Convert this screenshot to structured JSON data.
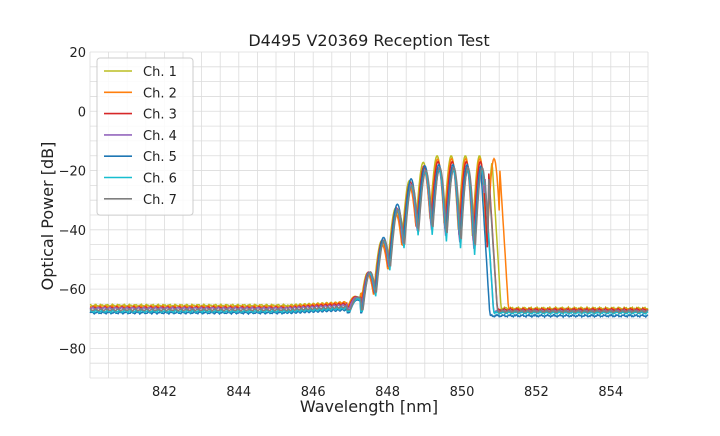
{
  "chart_data": {
    "type": "line",
    "title": "D4495 V20369 Reception Test",
    "xlabel": "Wavelength [nm]",
    "ylabel": "Optical Power [dB]",
    "xlim": [
      840.0,
      855.0
    ],
    "ylim": [
      -90,
      20
    ],
    "xticks": [
      842,
      844,
      846,
      848,
      850,
      852,
      854
    ],
    "yticks": [
      -80,
      -60,
      -40,
      -20,
      0,
      20
    ],
    "xtick_labels": [
      "842",
      "844",
      "846",
      "848",
      "850",
      "852",
      "854"
    ],
    "ytick_labels": [
      "−80",
      "−60",
      "−40",
      "−20",
      "0",
      "20"
    ],
    "minor_grid_step_x": 0.5,
    "minor_grid_step_y": 5,
    "grid": true,
    "legend_position": "top-left",
    "series": [
      {
        "name": "Ch. 1",
        "color": "#bcbd22",
        "floor": -65.5,
        "peak_floor": -64.5,
        "edge": 850.8,
        "max": -15,
        "phase": 0.0,
        "right_floor": -66.5
      },
      {
        "name": "Ch. 2",
        "color": "#ff7f0e",
        "floor": -66.0,
        "peak_floor": -64.5,
        "edge": 851.0,
        "max": -16,
        "phase": 0.15,
        "right_floor": -66.8
      },
      {
        "name": "Ch. 3",
        "color": "#d62728",
        "floor": -66.3,
        "peak_floor": -65.0,
        "edge": 850.7,
        "max": -17,
        "phase": 0.3,
        "right_floor": -67.0
      },
      {
        "name": "Ch. 4",
        "color": "#9467bd",
        "floor": -66.5,
        "peak_floor": -65.5,
        "edge": 850.6,
        "max": -19,
        "phase": 0.45,
        "right_floor": -67.5
      },
      {
        "name": "Ch. 5",
        "color": "#1f77b4",
        "floor": -68.0,
        "peak_floor": -67.0,
        "edge": 850.5,
        "max": -18,
        "phase": 0.6,
        "right_floor": -69.0
      },
      {
        "name": "Ch. 6",
        "color": "#17becf",
        "floor": -67.5,
        "peak_floor": -66.5,
        "edge": 850.6,
        "max": -20,
        "phase": 0.75,
        "right_floor": -68.0
      },
      {
        "name": "Ch. 7",
        "color": "#7f7f7f",
        "floor": -67.0,
        "peak_floor": -66.0,
        "edge": 850.7,
        "max": -19,
        "phase": 0.9,
        "right_floor": -67.5
      }
    ]
  }
}
